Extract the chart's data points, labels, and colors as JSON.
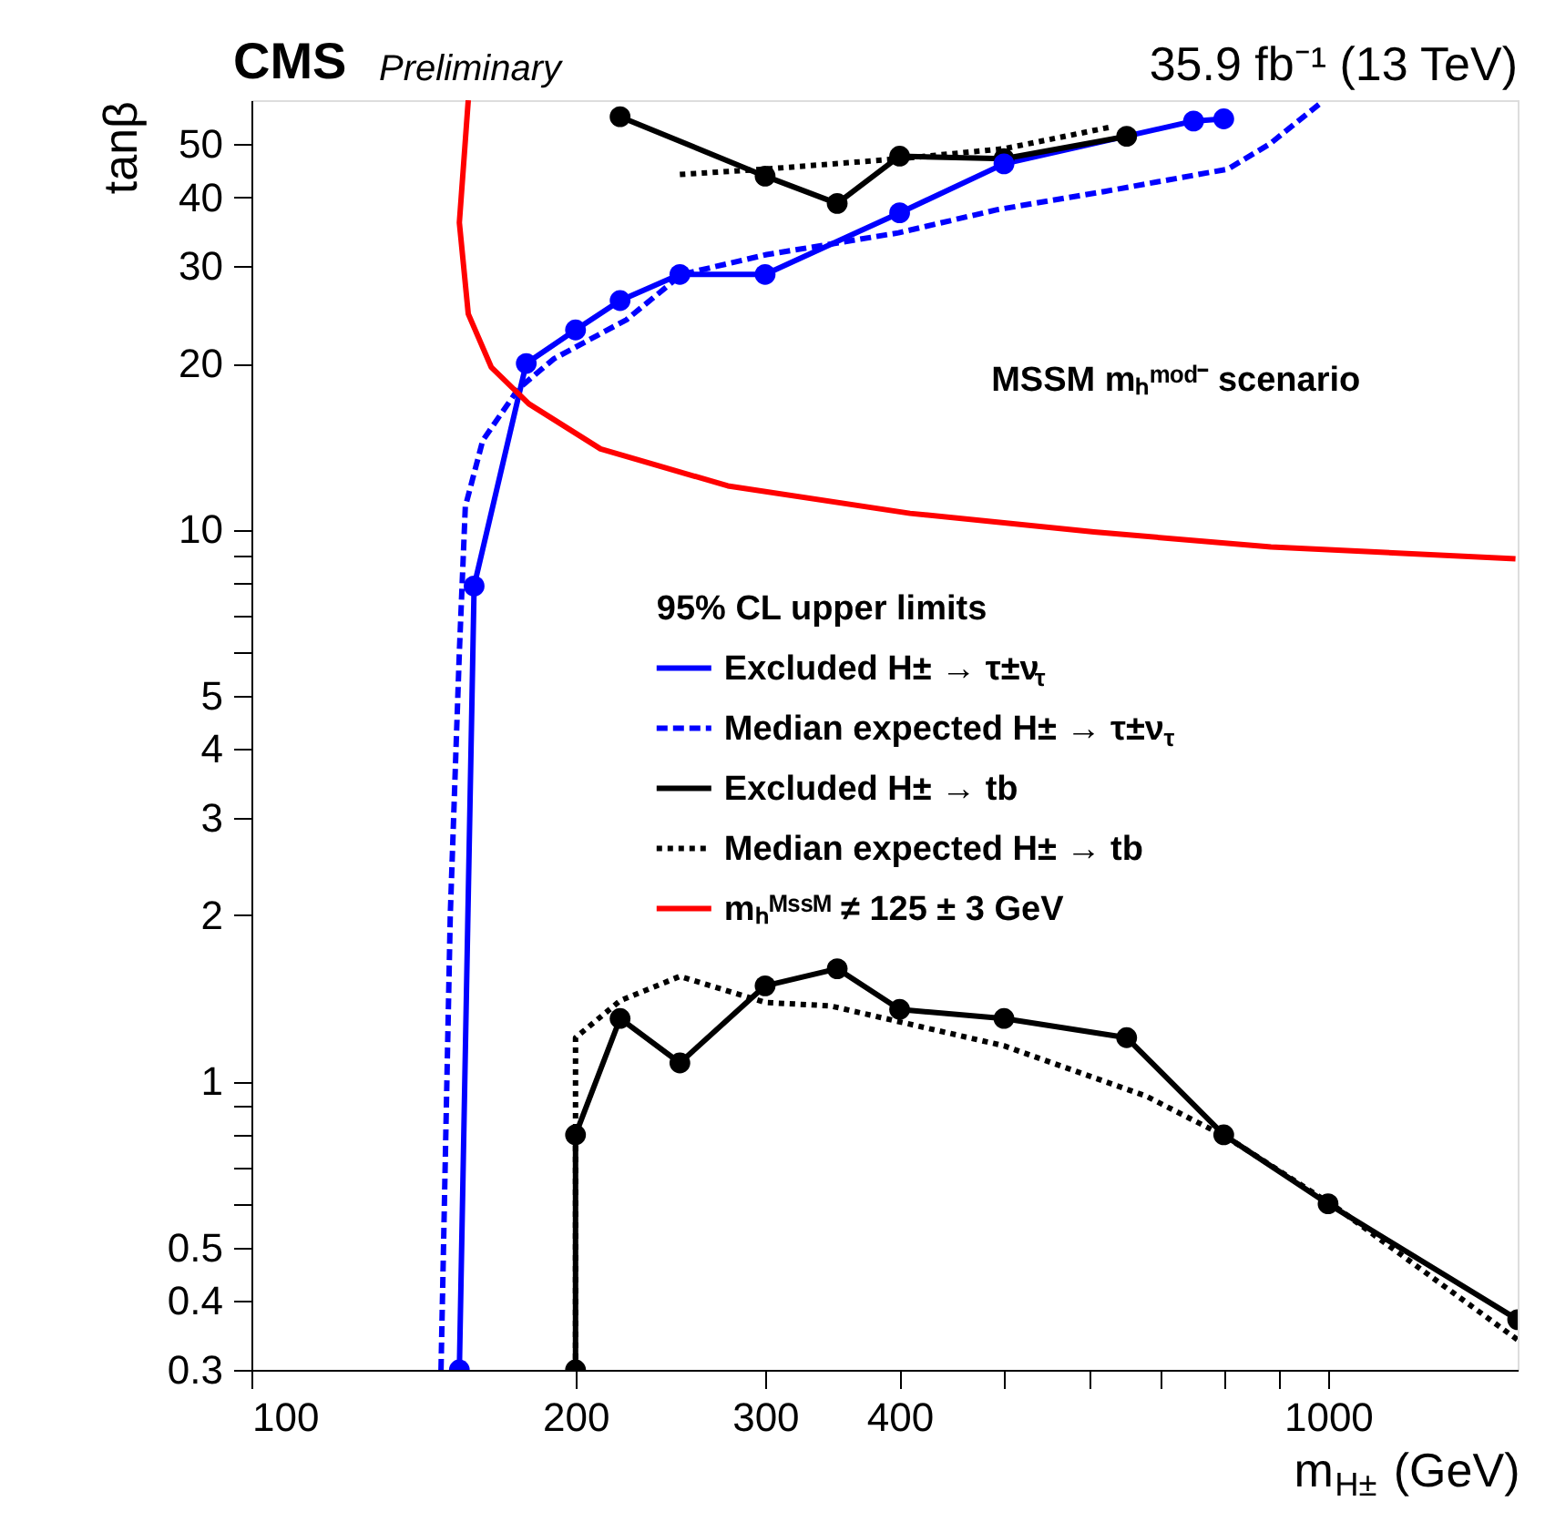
{
  "chart_data": {
    "type": "line",
    "title": "CMS",
    "subtitle": "Preliminary",
    "xlabel": "m$_{H±}$ (GeV)",
    "ylabel": "tanβ",
    "legend_title": "95% CL upper limits",
    "annotations": [
      "35.9 fb⁻¹ (13 TeV)",
      "MSSM mₕᵐᵒᵈ⁻ scenario"
    ],
    "log": "xy",
    "grid": false,
    "legend": "right",
    "xlim": [
      100,
      1500
    ],
    "ylim": [
      0.3,
      60
    ],
    "xticks": [
      100,
      200,
      300,
      400,
      {
        "value": 500,
        "label": null
      },
      {
        "value": 600,
        "label": null
      },
      {
        "value": 700,
        "label": null
      },
      {
        "value": 800,
        "label": null
      },
      {
        "value": 900,
        "label": null
      },
      1000
    ],
    "yticks": [
      0.3,
      0.4,
      0.5,
      {
        "value": 0.6,
        "label": null
      },
      {
        "value": 0.7,
        "label": null
      },
      {
        "value": 0.8,
        "label": null
      },
      {
        "value": 0.9,
        "label": null
      },
      1,
      2,
      3,
      4,
      5,
      {
        "value": 6,
        "label": null
      },
      {
        "value": 7,
        "label": null
      },
      {
        "value": 8,
        "label": null
      },
      {
        "value": 9,
        "label": null
      },
      10,
      20,
      30,
      40,
      50
    ],
    "series": [
      {
        "name": "Excluded H± → τ±ν$_{τ}$",
        "color": "#0000ff",
        "line_style": "solid",
        "marker": "circle",
        "x": [
          156,
          161,
          180,
          200,
          220,
          250,
          300,
          400,
          500,
          750,
          800
        ],
        "values": [
          0.3,
          7.9,
          20,
          23,
          26,
          29,
          29,
          37.5,
          46,
          55,
          55.5
        ]
      },
      {
        "name": "Median expected H± → τ±ν$_{τ}$",
        "color": "#0000ff",
        "line_style": "dashed",
        "marker": "none",
        "x": [
          150,
          153,
          156,
          158,
          164,
          177,
          191,
          223,
          251,
          301,
          399,
          493,
          620,
          807,
          883,
          981
        ],
        "values": [
          0.3,
          2,
          6,
          11,
          14.5,
          18,
          20.4,
          24,
          29,
          31.5,
          34.5,
          38,
          41,
          45,
          50,
          59
        ]
      },
      {
        "name": "Excluded H± → tb",
        "color": "#000000",
        "line_style": "solid",
        "marker": "circle",
        "x": [
          200,
          200,
          220,
          250,
          300,
          350,
          400,
          500,
          650,
          800,
          1000,
          1500,
          null,
          220,
          300,
          350,
          400,
          500,
          650
        ],
        "values": [
          0.3,
          0.8,
          1.3,
          1.08,
          1.49,
          1.6,
          1.35,
          1.3,
          1.2,
          0.8,
          0.6,
          0.37,
          null,
          56,
          43.7,
          39,
          47.5,
          47,
          51.6
        ]
      },
      {
        "name": "Median expected H± → tb",
        "color": "#000000",
        "line_style": "dotted",
        "marker": "none",
        "x": [
          200,
          200,
          220,
          250,
          300,
          345,
          500,
          678,
          807,
          1019,
          1500,
          null,
          250,
          300,
          400,
          500,
          630
        ],
        "values": [
          0.3,
          1.2,
          1.4,
          1.55,
          1.39,
          1.37,
          1.16,
          0.94,
          0.79,
          0.59,
          0.34,
          null,
          44,
          45,
          47,
          49,
          53.7
        ]
      },
      {
        "name": "mₕᴹˢˢᴹ ≠ 125 ± 3 GeV",
        "color": "#ff0000",
        "line_style": "solid",
        "marker": "none",
        "x": [
          159,
          156,
          159,
          167,
          181,
          211,
          277,
          409,
          606,
          885,
          1493
        ],
        "values": [
          60,
          36,
          24.6,
          19.7,
          16.9,
          14,
          12,
          10.7,
          9.9,
          9.3,
          8.85
        ]
      }
    ]
  }
}
